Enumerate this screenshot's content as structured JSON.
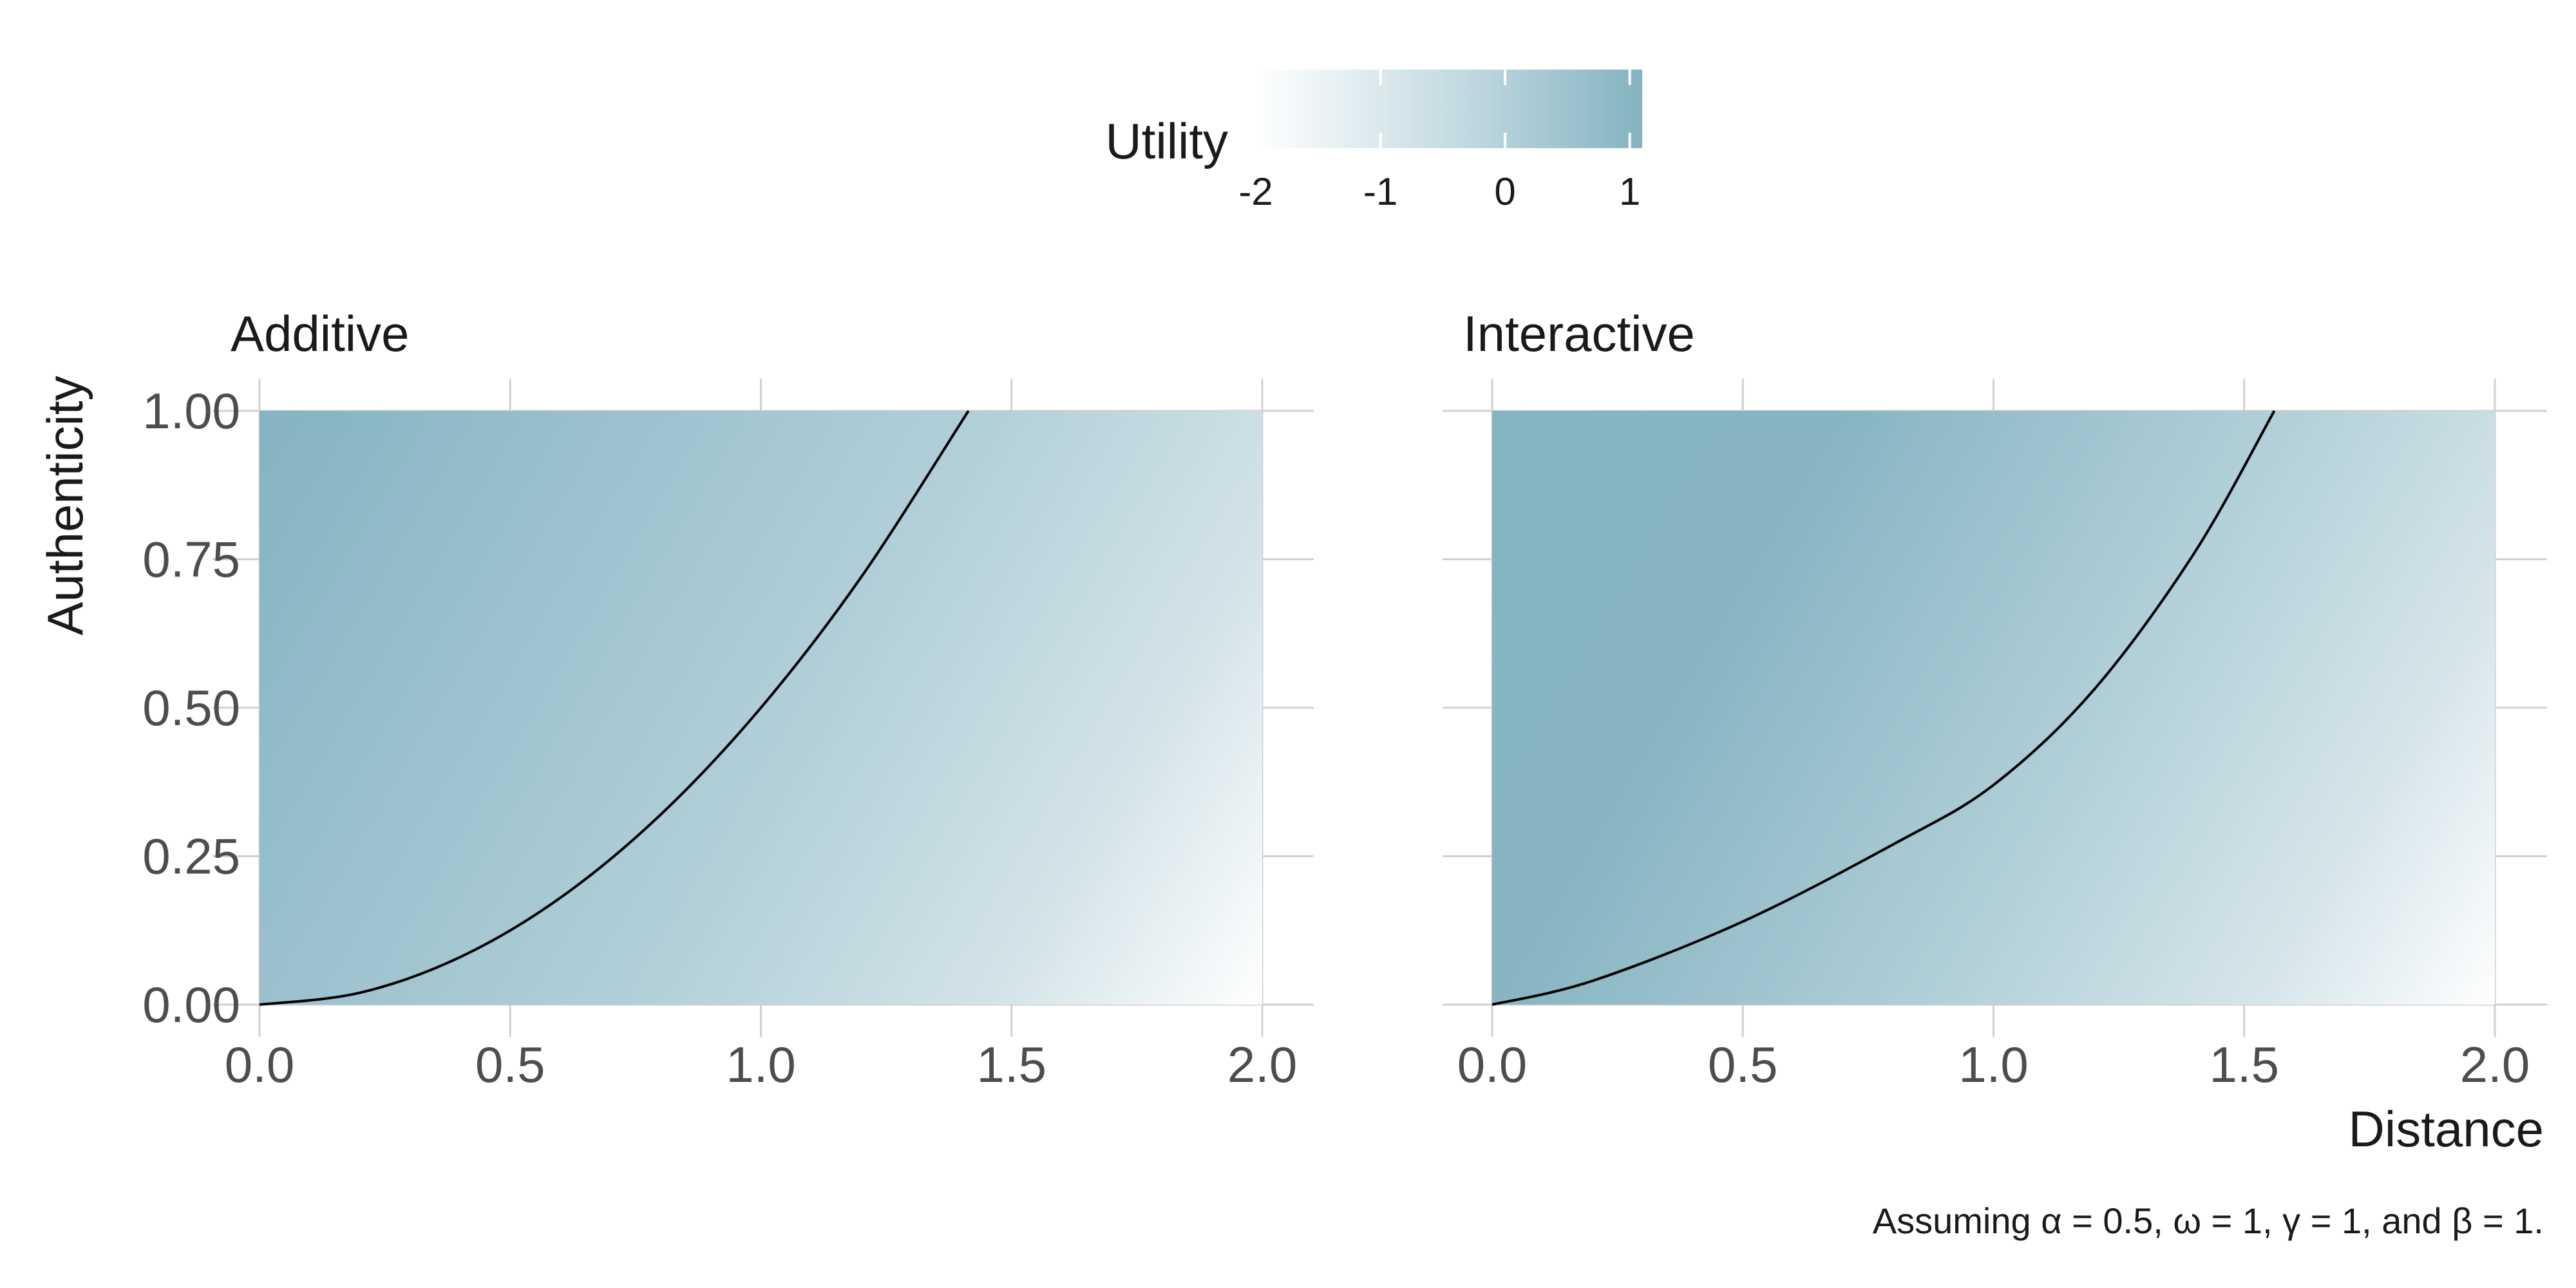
{
  "chart_data": {
    "type": "heatmap",
    "legend": {
      "title": "Utility",
      "ticks": [
        "-2",
        "-1",
        "0",
        "1"
      ],
      "tick_values": [
        -2,
        -1,
        0,
        1
      ],
      "range": [
        -2,
        1.1
      ],
      "color_low": "#ffffff",
      "color_high": "#84b3c1",
      "placement": "top"
    },
    "x_ticks": [
      "0.0",
      "0.5",
      "1.0",
      "1.5",
      "2.0"
    ],
    "x_tick_values": [
      0,
      0.5,
      1.0,
      1.5,
      2.0
    ],
    "y_ticks": [
      "0.00",
      "0.25",
      "0.50",
      "0.75",
      "1.00"
    ],
    "y_tick_values": [
      0,
      0.25,
      0.5,
      0.75,
      1.0
    ],
    "xlim": [
      0,
      2
    ],
    "ylim": [
      0,
      1
    ],
    "xlabel": "Distance",
    "ylabel": "Authenticity",
    "grid": true,
    "panels": [
      {
        "title": "Additive",
        "indifference_curve": {
          "x": [
            0,
            0.2,
            0.4,
            0.6,
            0.8,
            1.0,
            1.2,
            1.414
          ],
          "y": [
            0,
            0.02,
            0.08,
            0.18,
            0.32,
            0.5,
            0.72,
            1.0
          ]
        }
      },
      {
        "title": "Interactive",
        "indifference_curve": {
          "x": [
            0,
            0.2,
            0.5,
            0.8,
            1.0,
            1.2,
            1.4,
            1.56
          ],
          "y": [
            0,
            0.04,
            0.14,
            0.27,
            0.37,
            0.53,
            0.76,
            1.0
          ]
        }
      }
    ]
  },
  "caption": "Assuming α = 0.5, ω = 1, γ = 1, and β = 1."
}
